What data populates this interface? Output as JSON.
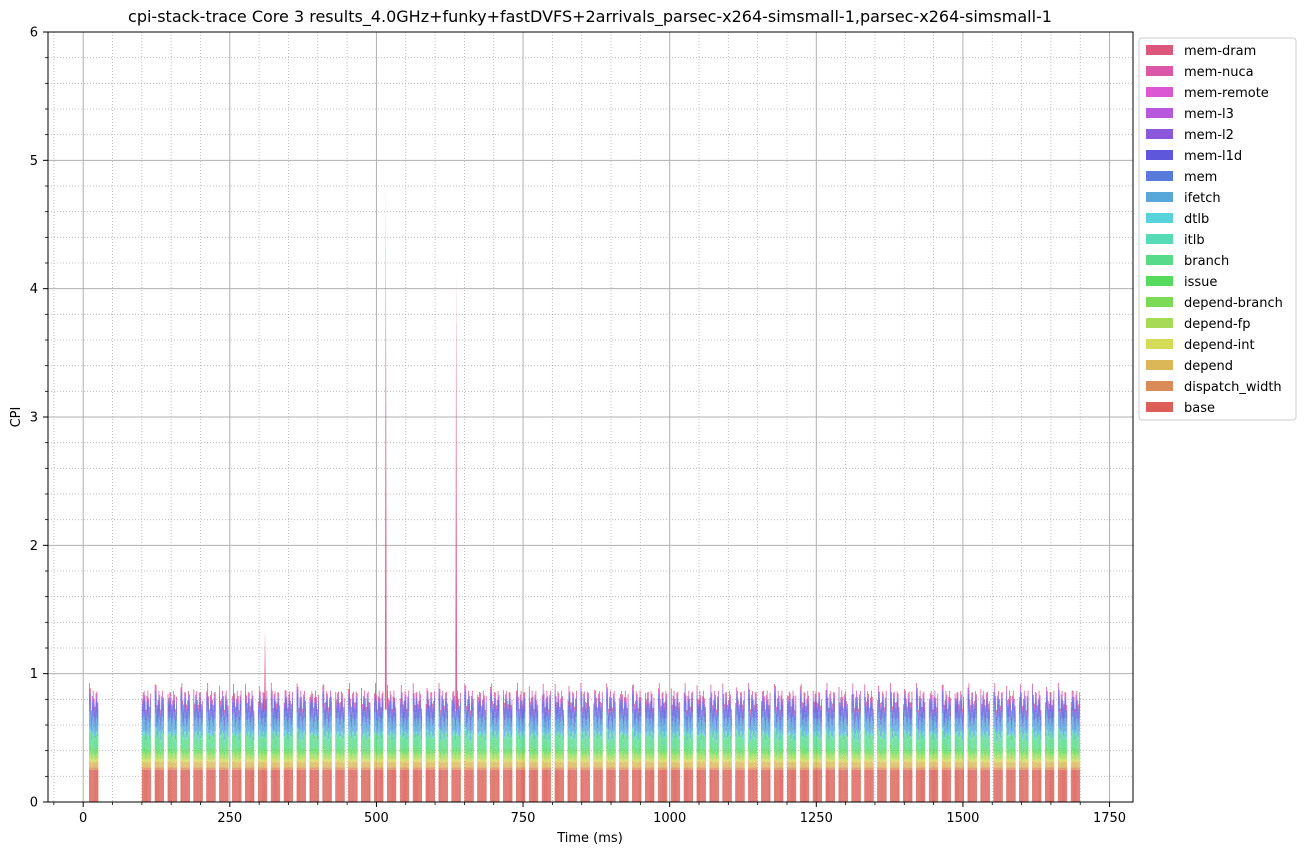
{
  "chart_data": {
    "type": "area",
    "title": "cpi-stack-trace Core 3 results_4.0GHz+funky+fastDVFS+2arrivals_parsec-x264-simsmall-1,parsec-x264-simsmall-1",
    "xlabel": "Time (ms)",
    "ylabel": "CPI",
    "xlim": [
      -60,
      1790
    ],
    "ylim": [
      0,
      6
    ],
    "x_ticks": [
      0,
      250,
      500,
      750,
      1000,
      1250,
      1500,
      1750
    ],
    "y_ticks": [
      0,
      1,
      2,
      3,
      4,
      5,
      6
    ],
    "grid": "major solid, minor dotted",
    "legend_position": "outside top-right",
    "legend": [
      "mem-dram",
      "mem-nuca",
      "mem-remote",
      "mem-l3",
      "mem-l2",
      "mem-l1d",
      "mem",
      "ifetch",
      "dtlb",
      "itlb",
      "branch",
      "issue",
      "depend-branch",
      "depend-fp",
      "depend-int",
      "depend",
      "dispatch_width",
      "base"
    ],
    "colors": {
      "base": "#db5f57",
      "dispatch_width": "#db8b57",
      "depend": "#dbb757",
      "depend-int": "#d3db57",
      "depend-fp": "#a7db57",
      "depend-branch": "#7bdb57",
      "issue": "#57db5f",
      "branch": "#57db8b",
      "itlb": "#57dbb7",
      "dtlb": "#57d3db",
      "ifetch": "#57a7db",
      "mem": "#577bdb",
      "mem-l1d": "#5f57db",
      "mem-l2": "#8b57db",
      "mem-l3": "#b757db",
      "mem-remote": "#db57d3",
      "mem-nuca": "#db57a7",
      "mem-dram": "#db577b"
    },
    "burst_starts": [
      10,
      100,
      122,
      144,
      166,
      188,
      210,
      232,
      254,
      276,
      298,
      320,
      342,
      364,
      386,
      408,
      430,
      452,
      474,
      496,
      518,
      540,
      562,
      584,
      606,
      628,
      650,
      672,
      694,
      716,
      738,
      760,
      782,
      804,
      826,
      848,
      870,
      892,
      914,
      936,
      958,
      980,
      1002,
      1024,
      1046,
      1068,
      1090,
      1112,
      1134,
      1156,
      1178,
      1200,
      1222,
      1244,
      1266,
      1288,
      1310,
      1332,
      1354,
      1376,
      1398,
      1420,
      1442,
      1464,
      1486,
      1508,
      1530,
      1552,
      1574,
      1596,
      1618,
      1640,
      1662,
      1684
    ],
    "burst_width_ms": 16,
    "stack_components_typical": {
      "base": 0.25,
      "dispatch_width": 0.02,
      "depend": 0.04,
      "depend-int": 0.02,
      "depend-fp": 0.03,
      "depend-branch": 0.02,
      "issue": 0.03,
      "branch": 0.09,
      "itlb": 0.01,
      "dtlb": 0.01,
      "ifetch": 0.09,
      "mem": 0.04,
      "mem-l1d": 0.08,
      "mem-l2": 0.02,
      "mem-l3": 0.01,
      "mem-remote": 0.0,
      "mem-nuca": 0.02,
      "mem-dram": 0.01
    },
    "spikes": [
      {
        "x": 310,
        "total": 1.35
      },
      {
        "x": 516,
        "total": 4.8
      },
      {
        "x": 636,
        "total": 4.15
      }
    ]
  }
}
